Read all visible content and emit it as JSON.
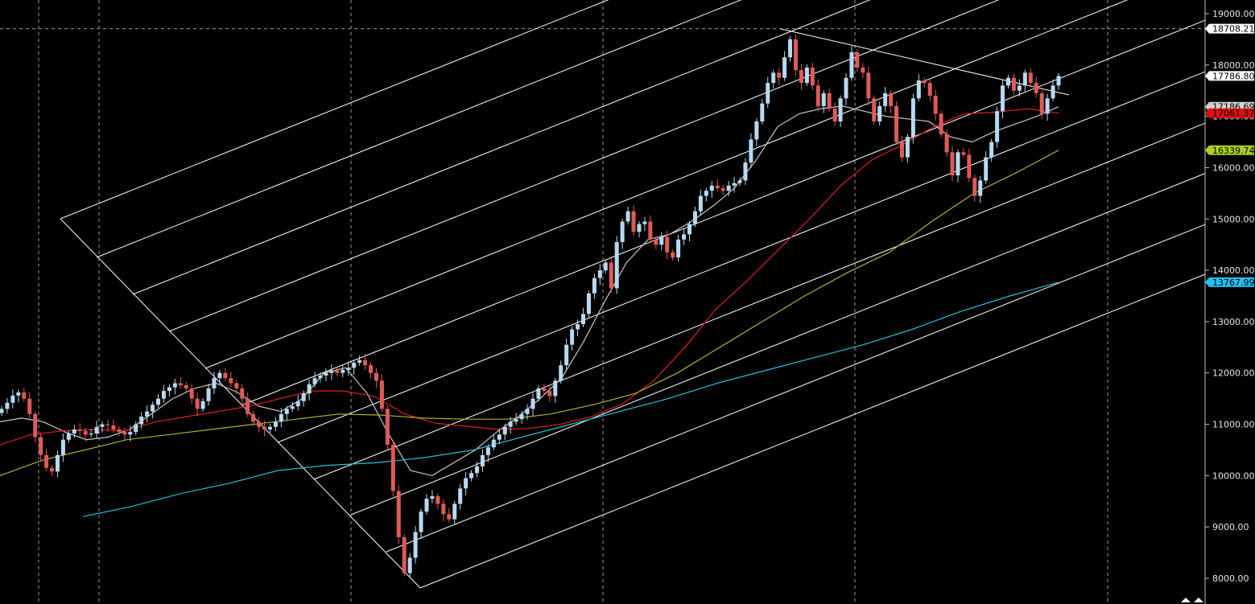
{
  "chart_data": {
    "type": "candlestick",
    "title": "",
    "ylim": [
      7500,
      19200
    ],
    "y_ticks": [
      "19000.00",
      "18000.00",
      "17000.00",
      "16000.00",
      "15000.00",
      "14000.00",
      "13000.00",
      "12000.00",
      "11000.00",
      "10000.00",
      "9000.00",
      "8000.00"
    ],
    "grid": true,
    "colors": {
      "background": "#000000",
      "up_candle": "#b8d9f0",
      "down_candle": "#e05a5a",
      "ma_short": "#c8c8c8",
      "ma_mid": "#e02020",
      "ma_long": "#b0b030",
      "ma_longest": "#20c0e0",
      "channel": "#ffffff",
      "grid": "#9a9a9a"
    },
    "price_tags": [
      {
        "label": "18708.21",
        "value": 18708.21,
        "bg": "#ffffff",
        "fg": "#000000"
      },
      {
        "label": "17786.80",
        "value": 17786.8,
        "bg": "#ffffff",
        "fg": "#000000"
      },
      {
        "label": "17186.69",
        "value": 17186.69,
        "bg": "#d0d0d0",
        "fg": "#000000"
      },
      {
        "label": "17061.37",
        "value": 17061.37,
        "bg": "#e01010",
        "fg": "#000000"
      },
      {
        "label": "16339.74",
        "value": 16339.74,
        "bg": "#a8d020",
        "fg": "#000000"
      },
      {
        "label": "13767.99",
        "value": 13767.99,
        "bg": "#20c0f0",
        "fg": "#000000"
      }
    ],
    "series": [
      {
        "name": "",
        "role": "price",
        "values": [
          11300,
          11420,
          11560,
          11620,
          11500,
          11200,
          10750,
          10400,
          10150,
          10080,
          10400,
          10700,
          10820,
          10900,
          10870,
          10800,
          10820,
          10950,
          11000,
          10980,
          10900,
          10850,
          10800,
          10850,
          11000,
          11150,
          11250,
          11380,
          11500,
          11650,
          11720,
          11800,
          11760,
          11700,
          11500,
          11300,
          11450,
          11700,
          11900,
          12000,
          11900,
          11800,
          11700,
          11500,
          11200,
          11050,
          10950,
          10900,
          10950,
          11050,
          11200,
          11300,
          11350,
          11450,
          11600,
          11780,
          11900,
          11950,
          12000,
          12050,
          12000,
          12060,
          12100,
          12200,
          12250,
          12150,
          12000,
          11850,
          11300,
          10600,
          9700,
          8800,
          8100,
          8400,
          8900,
          9300,
          9550,
          9600,
          9450,
          9250,
          9150,
          9450,
          9750,
          9950,
          10050,
          10180,
          10400,
          10550,
          10700,
          10800,
          10950,
          11050,
          11100,
          11200,
          11300,
          11500,
          11700,
          11650,
          11550,
          11850,
          12150,
          12550,
          12850,
          12950,
          13150,
          13550,
          13850,
          14000,
          14150,
          13650,
          14550,
          14950,
          15150,
          14750,
          14900,
          14950,
          14600,
          14500,
          14650,
          14350,
          14250,
          14600,
          14700,
          14900,
          15150,
          15450,
          15550,
          15650,
          15600,
          15550,
          15650,
          15700,
          15750,
          16100,
          16550,
          16900,
          17250,
          17650,
          17850,
          17750,
          18150,
          18500,
          17900,
          17650,
          17950,
          17600,
          17200,
          17450,
          17150,
          16900,
          17350,
          17750,
          18250,
          17950,
          17850,
          17350,
          16900,
          17200,
          17450,
          17200,
          16500,
          16200,
          16600,
          17350,
          17700,
          17650,
          17400,
          17050,
          16650,
          16300,
          15850,
          16300,
          16250,
          15800,
          15450,
          15750,
          16200,
          16500,
          17100,
          17600,
          17750,
          17500,
          17600,
          17850,
          17650,
          17450,
          17050,
          17350,
          17600,
          17786.8
        ]
      },
      {
        "name": "",
        "role": "ma",
        "values": [
          11050,
          11120,
          11050,
          10850,
          10700,
          10750,
          10900,
          11200,
          11500,
          11700,
          11800,
          11620,
          11350,
          11250,
          11500,
          12000,
          12100,
          11600,
          10800,
          10100,
          10000,
          10250,
          10500,
          10850,
          11150,
          11500,
          11900,
          12600,
          13400,
          14150,
          14600,
          14700,
          14950,
          15250,
          15600,
          16150,
          16800,
          17050,
          17150,
          17200,
          17100,
          17000,
          16950,
          16900,
          16600,
          16500,
          16700,
          16850,
          17000,
          17186.69
        ]
      },
      {
        "name": "",
        "role": "ma",
        "values": [
          10600,
          10800,
          10870,
          10900,
          10870,
          11050,
          11150,
          11250,
          11350,
          11500,
          11650,
          11650,
          11550,
          11200,
          11020,
          10960,
          10900,
          10920,
          11000,
          11150,
          11400,
          11850,
          12500,
          13250,
          13800,
          14400,
          15000,
          15650,
          16150,
          16450,
          16800,
          17050,
          17080,
          17150,
          17061.37
        ]
      },
      {
        "name": "",
        "role": "ma",
        "values": [
          10000,
          10300,
          10500,
          10700,
          10800,
          10900,
          11000,
          11100,
          11200,
          11180,
          11120,
          11100,
          11100,
          11200,
          11380,
          11600,
          12000,
          12500,
          13000,
          13500,
          13950,
          14350,
          14950,
          15500,
          15900,
          16339.74
        ]
      },
      {
        "name": "",
        "role": "ma",
        "values": [
          9200,
          9400,
          9650,
          9850,
          10100,
          10200,
          10250,
          10350,
          10500,
          10750,
          11000,
          11250,
          11500,
          11800,
          12050,
          12300,
          12550,
          12850,
          13200,
          13500,
          13767.99
        ]
      }
    ]
  }
}
